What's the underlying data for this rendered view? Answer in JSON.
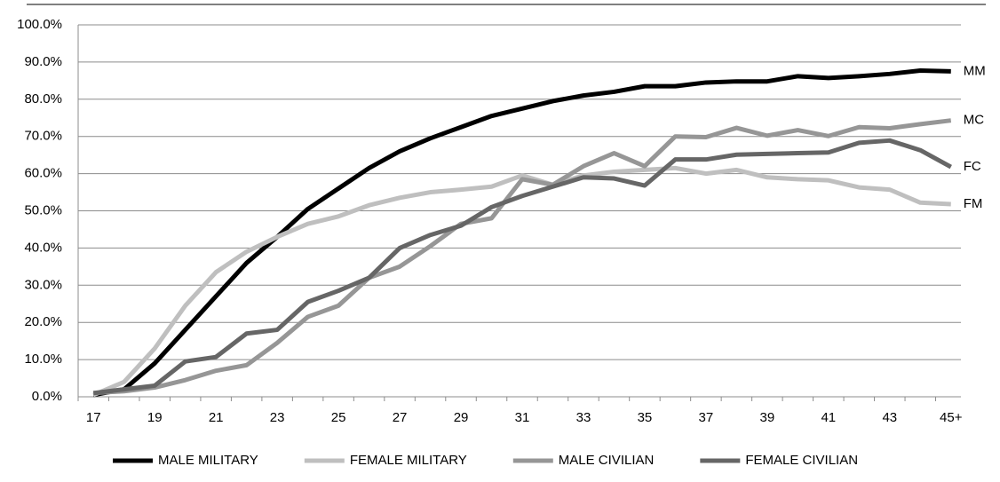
{
  "chart_data": {
    "type": "line",
    "categories": [
      "17",
      null,
      "19",
      null,
      "21",
      null,
      "23",
      null,
      "25",
      null,
      "27",
      null,
      "29",
      null,
      "31",
      null,
      "33",
      null,
      "35",
      null,
      "37",
      null,
      "39",
      null,
      "41",
      null,
      "43",
      null,
      "45+"
    ],
    "series": [
      {
        "name": "MALE MILITARY",
        "end_label": "MM",
        "color": "#000000",
        "values": [
          0.5,
          2,
          9,
          18,
          27,
          36,
          43,
          50.5,
          56,
          61.5,
          66,
          69.5,
          72.5,
          75.5,
          77.5,
          79.5,
          81,
          82,
          83.5,
          83.5,
          84.5,
          84.8,
          84.8,
          86.2,
          85.7,
          86.2,
          86.8,
          87.7,
          87.5
        ]
      },
      {
        "name": "FEMALE MILITARY",
        "end_label": "FM",
        "color": "#bfbfbf",
        "values": [
          0.5,
          4,
          13,
          24.5,
          33.5,
          39,
          43,
          46.5,
          48.5,
          51.5,
          53.5,
          55,
          55.7,
          56.5,
          59.5,
          57,
          59.5,
          60.5,
          61,
          61.5,
          60,
          61,
          59,
          58.5,
          58.2,
          56.3,
          55.7,
          52.2,
          51.8
        ]
      },
      {
        "name": "MALE CIVILIAN",
        "end_label": "MC",
        "color": "#969696",
        "values": [
          1,
          1.5,
          2.5,
          4.5,
          7,
          8.5,
          14.5,
          21.5,
          24.5,
          32,
          35,
          40.5,
          46.5,
          48,
          58.5,
          57,
          62,
          65.5,
          62,
          70,
          69.8,
          72.3,
          70.2,
          71.7,
          70.1,
          72.5,
          72.2,
          73.3,
          74.3
        ]
      },
      {
        "name": "FEMALE CIVILIAN",
        "end_label": "FC",
        "color": "#666666",
        "values": [
          1,
          2,
          3,
          9.5,
          10.7,
          17,
          18,
          25.5,
          28.5,
          32,
          40,
          43.5,
          46,
          51,
          54,
          56.5,
          59,
          58.7,
          56.8,
          63.8,
          63.8,
          65.1,
          65.3,
          65.5,
          65.7,
          68.3,
          68.9,
          66.3,
          61.8
        ]
      }
    ],
    "ylim": [
      0,
      100
    ],
    "yticks": [
      {
        "value": 0,
        "label": "0.0%"
      },
      {
        "value": 10,
        "label": "10.0%"
      },
      {
        "value": 20,
        "label": "20.0%"
      },
      {
        "value": 30,
        "label": "30.0%"
      },
      {
        "value": 40,
        "label": "40.0%"
      },
      {
        "value": 50,
        "label": "50.0%"
      },
      {
        "value": 60,
        "label": "60.0%"
      },
      {
        "value": 70,
        "label": "70.0%"
      },
      {
        "value": 80,
        "label": "80.0%"
      },
      {
        "value": 90,
        "label": "90.0%"
      },
      {
        "value": 100,
        "label": "100.0%"
      }
    ],
    "grid": true,
    "legend": "bottom"
  }
}
